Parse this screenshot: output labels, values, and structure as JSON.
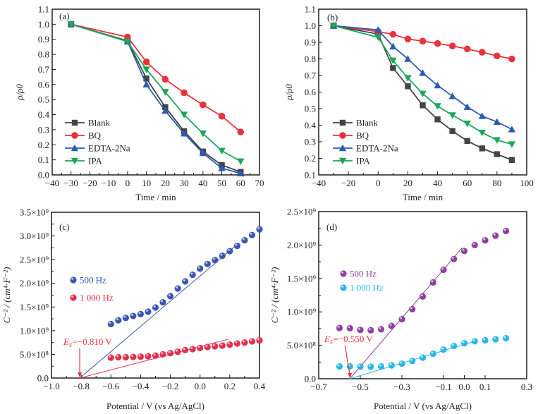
{
  "chart_data": [
    {
      "id": "a",
      "type": "line",
      "panel_label": "(a)",
      "xlabel": "Time / min",
      "ylabel": "ρ/ρ0",
      "xlim": [
        -40,
        70
      ],
      "ylim": [
        0.0,
        1.1
      ],
      "xticks": [
        -40,
        -30,
        -20,
        -10,
        0,
        10,
        20,
        30,
        40,
        50,
        60,
        70
      ],
      "xtick_labels": [
        "−40",
        "−30",
        "−20",
        "−10",
        "0",
        "10",
        "20",
        "30",
        "40",
        "50",
        "60",
        "70"
      ],
      "yticks": [
        0.0,
        0.1,
        0.2,
        0.3,
        0.4,
        0.5,
        0.6,
        0.7,
        0.8,
        0.9,
        1.0,
        1.1
      ],
      "ytick_labels": [
        "0.0",
        "0.1",
        "0.2",
        "0.3",
        "0.4",
        "0.5",
        "0.6",
        "0.7",
        "0.8",
        "0.9",
        "1.0",
        "1.1"
      ],
      "legend_position": "bottom-left",
      "x": [
        -30,
        0,
        10,
        20,
        30,
        40,
        50,
        60
      ],
      "series": [
        {
          "name": "Blank",
          "color": "#444444",
          "marker": "square",
          "values": [
            1.0,
            0.89,
            0.64,
            0.45,
            0.29,
            0.155,
            0.065,
            0.02
          ]
        },
        {
          "name": "BQ",
          "color": "#e8323c",
          "marker": "circle",
          "values": [
            1.0,
            0.915,
            0.75,
            0.635,
            0.545,
            0.465,
            0.39,
            0.285
          ]
        },
        {
          "name": "EDTA-2Na",
          "color": "#2a5db0",
          "marker": "triangle-up",
          "values": [
            1.0,
            0.885,
            0.6,
            0.425,
            0.275,
            0.145,
            0.045,
            0.01
          ]
        },
        {
          "name": "IPA",
          "color": "#1aa85a",
          "marker": "triangle-down",
          "values": [
            1.0,
            0.885,
            0.7,
            0.55,
            0.4,
            0.275,
            0.16,
            0.09
          ]
        }
      ]
    },
    {
      "id": "b",
      "type": "line",
      "panel_label": "(b)",
      "xlabel": "Time / min",
      "ylabel": "ρ/ρ0",
      "xlim": [
        -40,
        100
      ],
      "ylim": [
        0.1,
        1.1
      ],
      "xticks": [
        -40,
        -20,
        0,
        20,
        40,
        60,
        80,
        100
      ],
      "xtick_labels": [
        "−40",
        "−20",
        "0",
        "20",
        "40",
        "60",
        "80",
        "100"
      ],
      "yticks": [
        0.1,
        0.2,
        0.3,
        0.4,
        0.5,
        0.6,
        0.7,
        0.8,
        0.9,
        1.0,
        1.1
      ],
      "ytick_labels": [
        "0.1",
        "0.2",
        "0.3",
        "0.4",
        "0.5",
        "0.6",
        "0.7",
        "0.8",
        "0.9",
        "1.0",
        "1.1"
      ],
      "legend_position": "bottom-left",
      "x": [
        -30,
        0,
        10,
        20,
        30,
        40,
        50,
        60,
        70,
        80,
        90
      ],
      "series": [
        {
          "name": "Blank",
          "color": "#444444",
          "marker": "square",
          "values": [
            1.0,
            0.95,
            0.745,
            0.635,
            0.52,
            0.435,
            0.365,
            0.305,
            0.26,
            0.225,
            0.19
          ]
        },
        {
          "name": "BQ",
          "color": "#e8323c",
          "marker": "circle",
          "values": [
            1.0,
            0.965,
            0.948,
            0.92,
            0.907,
            0.893,
            0.878,
            0.86,
            0.84,
            0.818,
            0.8
          ]
        },
        {
          "name": "EDTA-2Na",
          "color": "#2a5db0",
          "marker": "triangle-up",
          "values": [
            1.0,
            0.975,
            0.875,
            0.8,
            0.715,
            0.64,
            0.575,
            0.51,
            0.455,
            0.42,
            0.375
          ]
        },
        {
          "name": "IPA",
          "color": "#1aa85a",
          "marker": "triangle-down",
          "values": [
            1.0,
            0.93,
            0.79,
            0.685,
            0.59,
            0.515,
            0.46,
            0.41,
            0.355,
            0.31,
            0.285
          ]
        }
      ]
    },
    {
      "id": "c",
      "type": "scatter",
      "panel_label": "(c)",
      "xlabel": "Potential / V (vs Ag/AgCl)",
      "ylabel": "C⁻² / (cm⁴·F⁻²)",
      "xlim": [
        -1.0,
        0.4
      ],
      "ylim": [
        0,
        3500000000.0
      ],
      "xticks": [
        -1.0,
        -0.8,
        -0.6,
        -0.4,
        -0.2,
        0.0,
        0.2,
        0.4
      ],
      "xtick_labels": [
        "−1.0",
        "−0.8",
        "−0.6",
        "−0.4",
        "−0.2",
        "0.0",
        "0.2",
        "0.4"
      ],
      "yticks": [
        0,
        500000000.0,
        1000000000.0,
        1500000000.0,
        2000000000.0,
        2500000000.0,
        3000000000.0,
        3500000000.0
      ],
      "ytick_labels": [
        "0.0",
        "5.0×10⁸",
        "1.0×10⁹",
        "1.5×10⁹",
        "2.0×10⁹",
        "2.5×10⁹",
        "3.0×10⁹",
        "3.5×10⁹"
      ],
      "legend_position": "center-left",
      "x": [
        -0.6,
        -0.55,
        -0.5,
        -0.45,
        -0.4,
        -0.35,
        -0.3,
        -0.25,
        -0.2,
        -0.15,
        -0.1,
        -0.05,
        0.0,
        0.05,
        0.1,
        0.15,
        0.2,
        0.25,
        0.3,
        0.35,
        0.4
      ],
      "series": [
        {
          "name": "500 Hz",
          "color": "#3a56b0",
          "values": [
            1140000000.0,
            1220000000.0,
            1270000000.0,
            1310000000.0,
            1350000000.0,
            1400000000.0,
            1490000000.0,
            1600000000.0,
            1730000000.0,
            1890000000.0,
            2040000000.0,
            2180000000.0,
            2310000000.0,
            2410000000.0,
            2490000000.0,
            2580000000.0,
            2680000000.0,
            2790000000.0,
            2910000000.0,
            3020000000.0,
            3140000000.0
          ],
          "fit": {
            "x": [
              -0.81,
              0.25
            ],
            "y": [
              0,
              2820000000.0
            ]
          }
        },
        {
          "name": "1 000 Hz",
          "color": "#e0304e",
          "values": [
            430000000.0,
            440000000.0,
            440000000.0,
            445000000.0,
            450000000.0,
            460000000.0,
            475000000.0,
            500000000.0,
            525000000.0,
            555000000.0,
            590000000.0,
            610000000.0,
            635000000.0,
            655000000.0,
            670000000.0,
            685000000.0,
            705000000.0,
            730000000.0,
            750000000.0,
            775000000.0,
            795000000.0
          ],
          "fit": {
            "x": [
              -0.81,
              0.19
            ],
            "y": [
              0,
              820000000.0
            ]
          }
        }
      ],
      "annotation": {
        "text_main": "E",
        "text_sub": "F",
        "text_value": "=−0.810 V",
        "x": -0.81,
        "color": "#e8323c"
      }
    },
    {
      "id": "d",
      "type": "scatter",
      "panel_label": "(d)",
      "xlabel": "Potential / V (vs Ag/AgCl)",
      "ylabel": "C⁻² / (cm⁴·F⁻²)",
      "xlim": [
        -0.7,
        0.3
      ],
      "ylim": [
        0,
        2500000000.0
      ],
      "xticks": [
        -0.7,
        -0.5,
        -0.3,
        -0.1,
        0.0,
        0.1,
        0.3
      ],
      "xtick_labels": [
        "−0.7",
        "−0.5",
        "−0.3",
        "−0.1",
        "0.0",
        "0.1",
        "0.3"
      ],
      "yticks": [
        0,
        500000000.0,
        1000000000.0,
        1500000000.0,
        2000000000.0,
        2500000000.0
      ],
      "ytick_labels": [
        "0.0",
        "5.0×10⁸",
        "1.0×10⁹",
        "1.5×10⁹",
        "2.0×10⁹",
        "2.5×10⁹"
      ],
      "legend_position": "center-left",
      "x": [
        -0.6,
        -0.55,
        -0.5,
        -0.45,
        -0.4,
        -0.35,
        -0.3,
        -0.25,
        -0.2,
        -0.15,
        -0.1,
        -0.05,
        0.0,
        0.05,
        0.1,
        0.15,
        0.2
      ],
      "series": [
        {
          "name": "500 Hz",
          "color": "#8e3fa0",
          "values": [
            760000000.0,
            755000000.0,
            730000000.0,
            725000000.0,
            740000000.0,
            790000000.0,
            890000000.0,
            1040000000.0,
            1230000000.0,
            1440000000.0,
            1630000000.0,
            1790000000.0,
            1910000000.0,
            2000000000.0,
            2070000000.0,
            2140000000.0,
            2210000000.0
          ],
          "fit": {
            "x": [
              -0.55,
              -0.01
            ],
            "y": [
              0,
              1960000000.0
            ]
          }
        },
        {
          "name": "1 000 Hz",
          "color": "#29b7e8",
          "values": [
            185000000.0,
            185000000.0,
            180000000.0,
            180000000.0,
            185000000.0,
            200000000.0,
            225000000.0,
            265000000.0,
            315000000.0,
            375000000.0,
            435000000.0,
            490000000.0,
            530000000.0,
            560000000.0,
            575000000.0,
            590000000.0,
            605000000.0
          ],
          "fit": {
            "x": [
              -0.55,
              0.05
            ],
            "y": [
              0,
              560000000.0
            ]
          }
        }
      ],
      "annotation": {
        "text_main": "E",
        "text_sub": "F",
        "text_value": "=−0.550 V",
        "x": -0.55,
        "color": "#e8323c"
      }
    }
  ]
}
